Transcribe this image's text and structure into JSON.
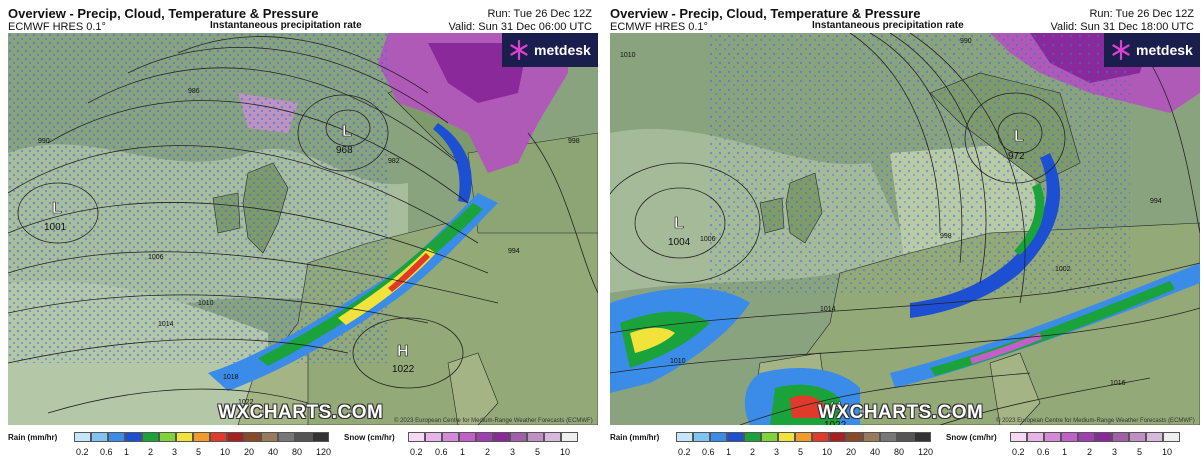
{
  "panels": [
    {
      "title": "Overview - Precip, Cloud, Temperature & Pressure",
      "model": "ECMWF HRES 0.1°",
      "subtitle": "Instantaneous precipitation rate",
      "run": "Run: Tue 26 Dec 12Z",
      "valid": "Valid: Sun 31 Dec 06:00 UTC",
      "logo_text": "metdesk",
      "watermark": "WXCHARTS.COM",
      "credit": "© 2023 European Centre for Medium-Range Weather Forecasts (ECMWF)",
      "pressure_centres": [
        {
          "type": "L",
          "value": "968"
        },
        {
          "type": "L",
          "value": "1001"
        },
        {
          "type": "H",
          "value": "1022"
        }
      ],
      "isobar_labels": [
        "1006",
        "1010",
        "1014",
        "1018",
        "1022",
        "982",
        "986",
        "990",
        "994",
        "998"
      ]
    },
    {
      "title": "Overview - Precip, Cloud, Temperature & Pressure",
      "model": "ECMWF HRES 0.1°",
      "subtitle": "Instantaneous precipitation rate",
      "run": "Run: Tue 26 Dec 12Z",
      "valid": "Valid: Sun 31 Dec 18:00 UTC",
      "logo_text": "metdesk",
      "watermark": "WXCHARTS.COM",
      "credit": "© 2023 European Centre for Medium-Range Weather Forecasts (ECMWF)",
      "pressure_centres": [
        {
          "type": "L",
          "value": "972"
        },
        {
          "type": "L",
          "value": "1004"
        },
        {
          "type": "H",
          "value": "1022"
        }
      ],
      "isobar_labels": [
        "1010",
        "1006",
        "1014",
        "1010",
        "1002",
        "998",
        "994",
        "1016",
        "990"
      ]
    }
  ],
  "legend": {
    "rain_label": "Rain (mm/hr)",
    "snow_label": "Snow (cm/hr)",
    "rain_ticks": [
      "0.2",
      "0.6",
      "1",
      "2",
      "3",
      "5",
      "10",
      "20",
      "40",
      "80",
      "120"
    ],
    "snow_ticks": [
      "0.2",
      "0.6",
      "1",
      "2",
      "3",
      "5",
      "10"
    ],
    "rain_colors": [
      "#c6e6fb",
      "#7fc4f4",
      "#3a8ce8",
      "#1c4fd2",
      "#1aa33a",
      "#7fd43a",
      "#f2e33a",
      "#f29a2a",
      "#e23a2a",
      "#a82020",
      "#8a4a2a",
      "#9a7a5a",
      "#777777",
      "#555555",
      "#333333"
    ],
    "snow_colors": [
      "#f4d8f4",
      "#e8b4e8",
      "#d48ad8",
      "#c060c8",
      "#a040b0",
      "#8a2a9a",
      "#a060a8",
      "#c090c4",
      "#d8b8dc",
      "#eeeeee"
    ]
  }
}
